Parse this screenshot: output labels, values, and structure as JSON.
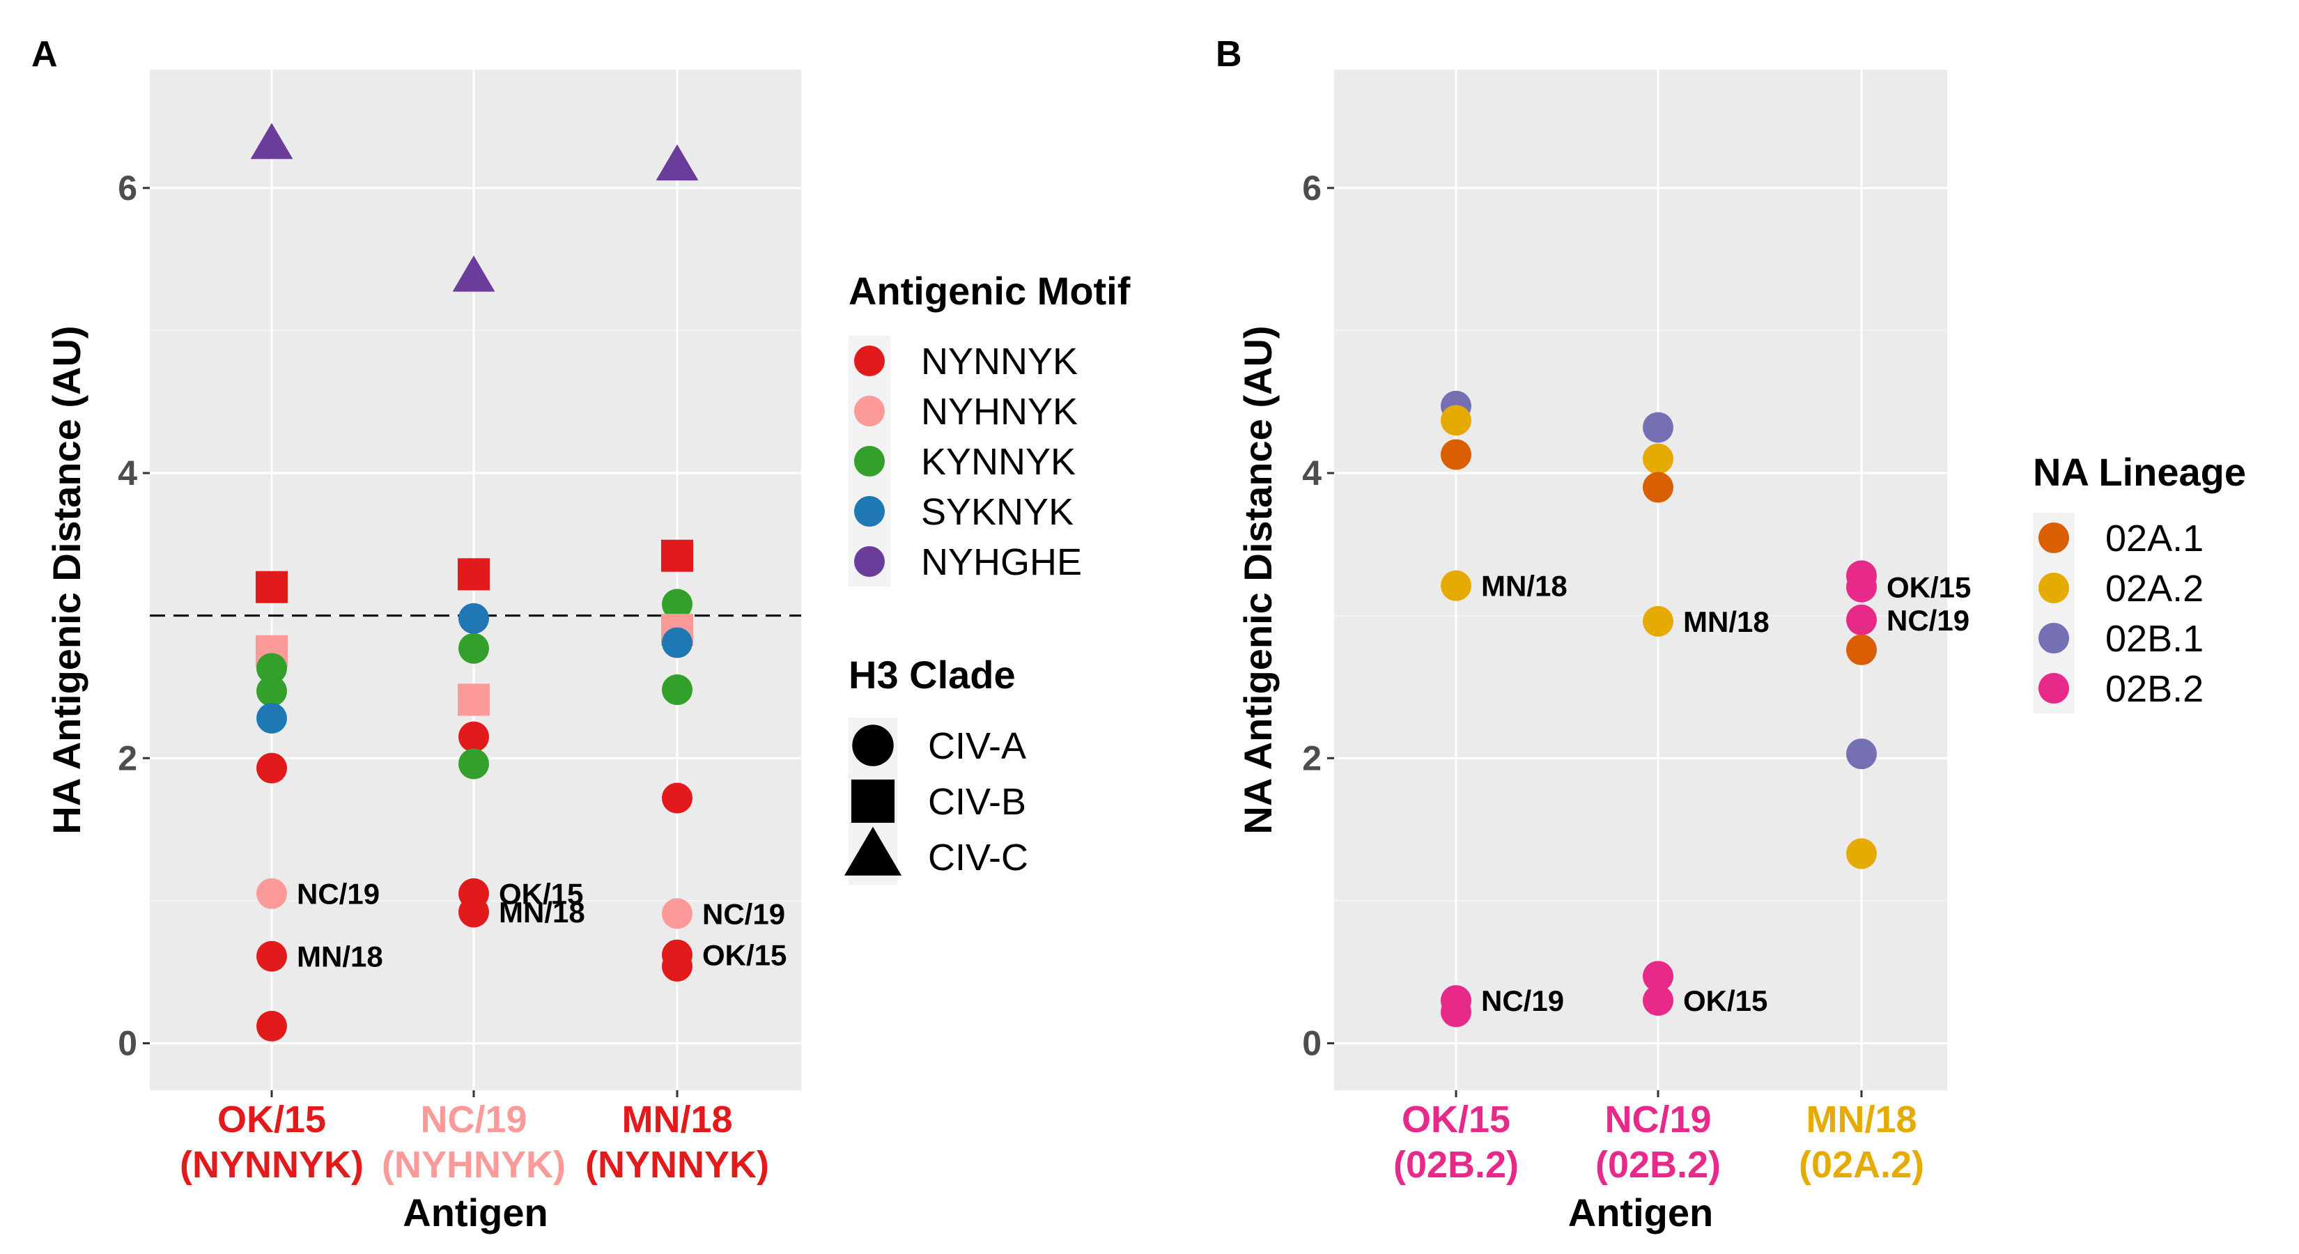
{
  "chart_data": [
    {
      "panel": "A",
      "type": "scatter",
      "xlabel": "Antigen",
      "ylabel": "HA Antigenic Distance (AU)",
      "ylim": [
        -0.33,
        6.83
      ],
      "yticks": [
        0,
        2,
        4,
        6
      ],
      "grid": true,
      "reference_line": {
        "y": 3,
        "style": "dashed"
      },
      "categories": [
        {
          "line1": "OK/15",
          "line2": "(NYNNYK)",
          "color": "#e31a1c"
        },
        {
          "line1": "NC/19",
          "line2": "(NYHNYK)",
          "color": "#fb9a99"
        },
        {
          "line1": "MN/18",
          "line2": "(NYNNYK)",
          "color": "#e31a1c"
        }
      ],
      "legend": {
        "placement": "right",
        "motif_title": "Antigenic Motif",
        "motifs": [
          {
            "name": "NYNNYK",
            "color": "#e31a1c"
          },
          {
            "name": "NYHNYK",
            "color": "#fb9a99"
          },
          {
            "name": "KYNNYK",
            "color": "#33a02c"
          },
          {
            "name": "SYKNYK",
            "color": "#1f78b4"
          },
          {
            "name": "NYHGHE",
            "color": "#6a3d9a"
          }
        ],
        "shape_title": "H3 Clade",
        "shapes": [
          {
            "name": "CIV-A",
            "shape": "circle"
          },
          {
            "name": "CIV-B",
            "shape": "square"
          },
          {
            "name": "CIV-C",
            "shape": "triangle"
          }
        ]
      },
      "points": [
        {
          "x": 0,
          "y": 6.3,
          "motif": "NYHGHE",
          "shape": "triangle"
        },
        {
          "x": 0,
          "y": 3.2,
          "motif": "NYNNYK",
          "shape": "square"
        },
        {
          "x": 0,
          "y": 2.75,
          "motif": "NYHNYK",
          "shape": "square"
        },
        {
          "x": 0,
          "y": 2.63,
          "motif": "KYNNYK",
          "shape": "circle"
        },
        {
          "x": 0,
          "y": 2.47,
          "motif": "KYNNYK",
          "shape": "circle"
        },
        {
          "x": 0,
          "y": 2.28,
          "motif": "SYKNYK",
          "shape": "circle"
        },
        {
          "x": 0,
          "y": 1.93,
          "motif": "NYNNYK",
          "shape": "circle"
        },
        {
          "x": 0,
          "y": 1.05,
          "motif": "NYHNYK",
          "shape": "circle",
          "label": "NC/19"
        },
        {
          "x": 0,
          "y": 0.61,
          "motif": "NYNNYK",
          "shape": "circle",
          "label": "MN/18"
        },
        {
          "x": 0,
          "y": 0.12,
          "motif": "NYNNYK",
          "shape": "circle"
        },
        {
          "x": 1,
          "y": 5.37,
          "motif": "NYHGHE",
          "shape": "triangle"
        },
        {
          "x": 1,
          "y": 3.29,
          "motif": "NYNNYK",
          "shape": "square"
        },
        {
          "x": 1,
          "y": 2.98,
          "motif": "SYKNYK",
          "shape": "circle"
        },
        {
          "x": 1,
          "y": 2.77,
          "motif": "KYNNYK",
          "shape": "circle"
        },
        {
          "x": 1,
          "y": 2.41,
          "motif": "NYHNYK",
          "shape": "square"
        },
        {
          "x": 1,
          "y": 2.15,
          "motif": "NYNNYK",
          "shape": "circle"
        },
        {
          "x": 1,
          "y": 1.96,
          "motif": "KYNNYK",
          "shape": "circle"
        },
        {
          "x": 1,
          "y": 1.05,
          "motif": "NYNNYK",
          "shape": "circle",
          "label": "OK/15"
        },
        {
          "x": 1,
          "y": 0.92,
          "motif": "NYNNYK",
          "shape": "circle",
          "label": "MN/18"
        },
        {
          "x": 2,
          "y": 6.15,
          "motif": "NYHGHE",
          "shape": "triangle"
        },
        {
          "x": 2,
          "y": 3.42,
          "motif": "NYNNYK",
          "shape": "square"
        },
        {
          "x": 2,
          "y": 3.08,
          "motif": "KYNNYK",
          "shape": "circle"
        },
        {
          "x": 2,
          "y": 2.9,
          "motif": "NYHNYK",
          "shape": "square"
        },
        {
          "x": 2,
          "y": 2.81,
          "motif": "SYKNYK",
          "shape": "circle"
        },
        {
          "x": 2,
          "y": 2.48,
          "motif": "KYNNYK",
          "shape": "circle"
        },
        {
          "x": 2,
          "y": 1.72,
          "motif": "NYNNYK",
          "shape": "circle"
        },
        {
          "x": 2,
          "y": 0.91,
          "motif": "NYHNYK",
          "shape": "circle",
          "label": "NC/19"
        },
        {
          "x": 2,
          "y": 0.62,
          "motif": "NYNNYK",
          "shape": "circle",
          "label": "OK/15"
        },
        {
          "x": 2,
          "y": 0.54,
          "motif": "NYNNYK",
          "shape": "circle"
        }
      ]
    },
    {
      "panel": "B",
      "type": "scatter",
      "xlabel": "Antigen",
      "ylabel": "NA Antigenic Distance (AU)",
      "ylim": [
        -0.33,
        6.83
      ],
      "yticks": [
        0,
        2,
        4,
        6
      ],
      "grid": true,
      "categories": [
        {
          "line1": "OK/15",
          "line2": "(02B.2)",
          "color": "#e7298a"
        },
        {
          "line1": "NC/19",
          "line2": "(02B.2)",
          "color": "#e7298a"
        },
        {
          "line1": "MN/18",
          "line2": "(02A.2)",
          "color": "#e6ab02"
        }
      ],
      "legend": {
        "placement": "right",
        "title": "NA Lineage",
        "items": [
          {
            "name": "02A.1",
            "color": "#d95f02"
          },
          {
            "name": "02A.2",
            "color": "#e6ab02"
          },
          {
            "name": "02B.1",
            "color": "#7570b3"
          },
          {
            "name": "02B.2",
            "color": "#e7298a"
          }
        ]
      },
      "points": [
        {
          "x": 0,
          "y": 4.47,
          "lineage": "02B.1"
        },
        {
          "x": 0,
          "y": 4.37,
          "lineage": "02A.2"
        },
        {
          "x": 0,
          "y": 4.13,
          "lineage": "02A.1"
        },
        {
          "x": 0,
          "y": 3.21,
          "lineage": "02A.2",
          "label": "MN/18"
        },
        {
          "x": 0,
          "y": 0.3,
          "lineage": "02B.2",
          "label": "NC/19"
        },
        {
          "x": 0,
          "y": 0.22,
          "lineage": "02B.2"
        },
        {
          "x": 1,
          "y": 4.32,
          "lineage": "02B.1"
        },
        {
          "x": 1,
          "y": 4.1,
          "lineage": "02A.2"
        },
        {
          "x": 1,
          "y": 3.9,
          "lineage": "02A.1"
        },
        {
          "x": 1,
          "y": 2.96,
          "lineage": "02A.2",
          "label": "MN/18"
        },
        {
          "x": 1,
          "y": 0.47,
          "lineage": "02B.2"
        },
        {
          "x": 1,
          "y": 0.3,
          "lineage": "02B.2",
          "label": "OK/15"
        },
        {
          "x": 2,
          "y": 3.28,
          "lineage": "02B.2"
        },
        {
          "x": 2,
          "y": 3.2,
          "lineage": "02B.2",
          "label": "OK/15"
        },
        {
          "x": 2,
          "y": 2.97,
          "lineage": "02B.2",
          "label": "NC/19"
        },
        {
          "x": 2,
          "y": 2.76,
          "lineage": "02A.1"
        },
        {
          "x": 2,
          "y": 2.03,
          "lineage": "02B.1"
        },
        {
          "x": 2,
          "y": 1.33,
          "lineage": "02A.2"
        }
      ]
    }
  ]
}
